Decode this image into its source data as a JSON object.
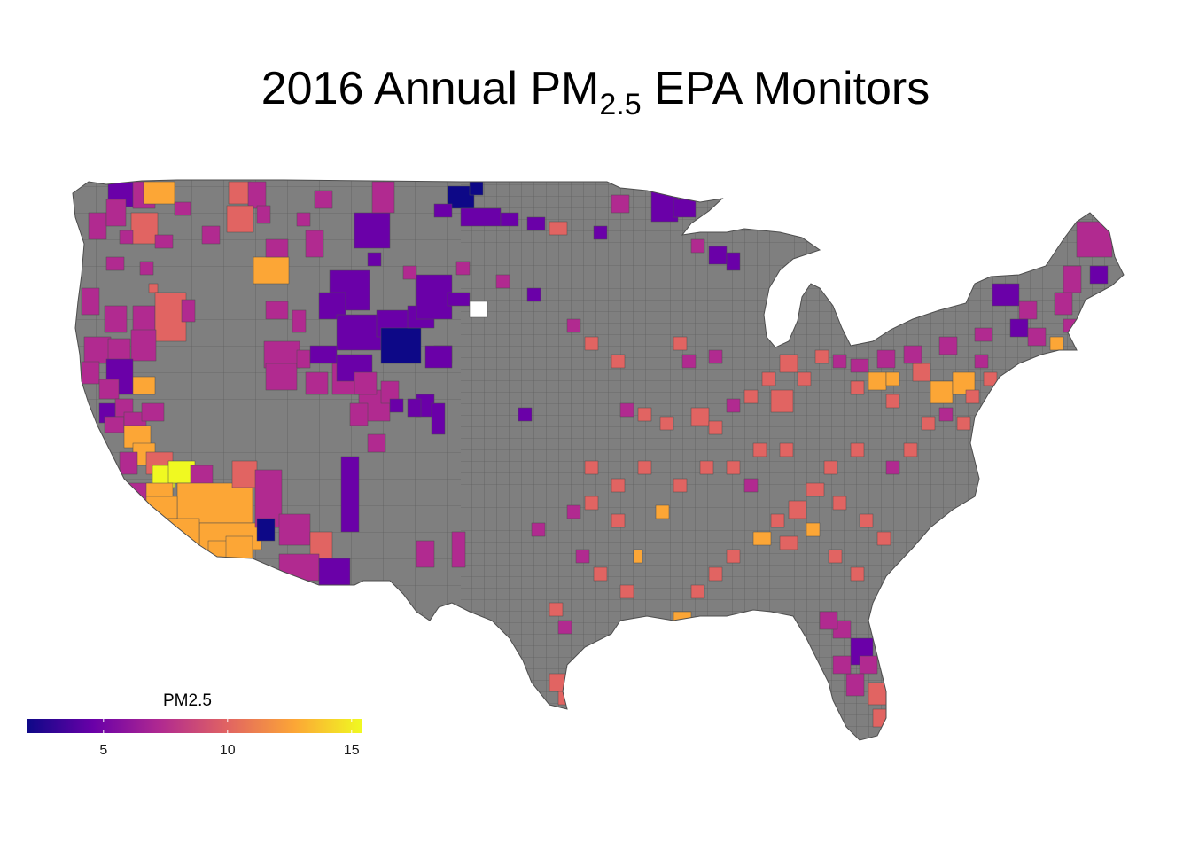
{
  "title": {
    "main": "2016 Annual PM",
    "subscript": "2.5",
    "rest": " EPA Monitors"
  },
  "legend": {
    "title": "PM2.5",
    "min": 1.9,
    "max": 15.4,
    "ticks": [
      {
        "value": 5,
        "label": "5"
      },
      {
        "value": 10,
        "label": "10"
      },
      {
        "value": 15,
        "label": "15"
      }
    ],
    "colors": [
      "#0d0887",
      "#6a00a8",
      "#b12a90",
      "#e16462",
      "#fca636",
      "#f0f921"
    ]
  },
  "map": {
    "no_data_color": "#7f7f7f",
    "border_color": "#4d4d4d",
    "missing_color": "#ffffff"
  }
}
